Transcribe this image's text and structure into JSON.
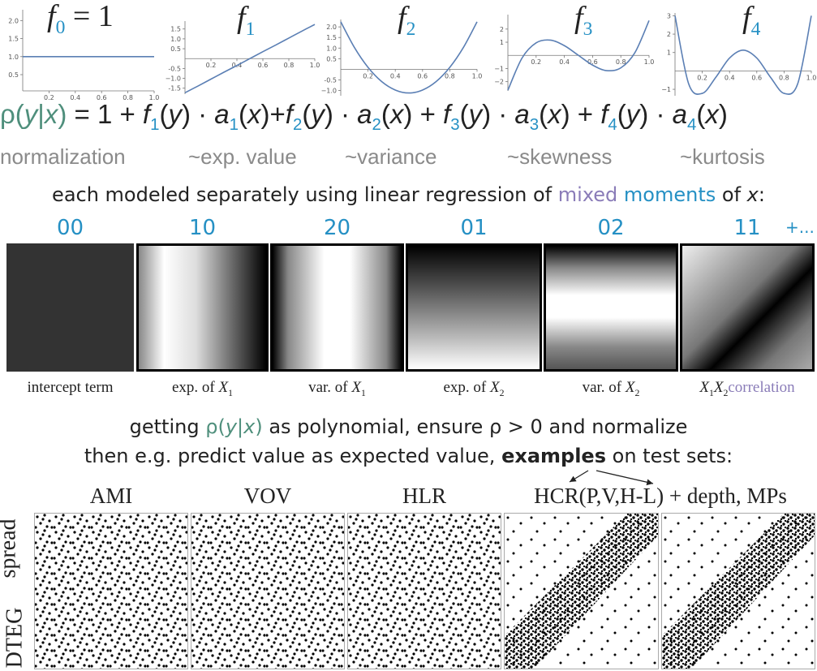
{
  "chart_data": [
    {
      "type": "line",
      "title_parts": [
        {
          "text": "f",
          "style": "italic"
        },
        {
          "text": "0",
          "style": "sub"
        },
        {
          "text": " = 1",
          "style": "plain"
        }
      ],
      "color": "#5b7fb4",
      "x": [
        0,
        0.1,
        0.2,
        0.3,
        0.4,
        0.5,
        0.6,
        0.7,
        0.8,
        0.9,
        1
      ],
      "values": [
        1,
        1,
        1,
        1,
        1,
        1,
        1,
        1,
        1,
        1,
        1
      ],
      "xlim": [
        0,
        1
      ],
      "ylim": [
        0.05,
        2.3
      ],
      "xticks": [
        0.2,
        0.4,
        0.6,
        0.8,
        {
          "value": 1,
          "label": "1.0"
        }
      ],
      "yticks": [
        0.5,
        {
          "value": 1,
          "label": "1.0"
        },
        1.5,
        {
          "value": 2,
          "label": "2.0"
        }
      ]
    },
    {
      "type": "line",
      "title_parts": [
        {
          "text": "f",
          "style": "italic"
        },
        {
          "text": "1",
          "style": "sub"
        }
      ],
      "color": "#5b7fb4",
      "x": [
        0,
        0.1,
        0.2,
        0.3,
        0.4,
        0.5,
        0.6,
        0.7,
        0.8,
        0.9,
        1
      ],
      "values": [
        -1.73,
        -1.39,
        -1.04,
        -0.69,
        -0.35,
        0,
        0.35,
        0.69,
        1.04,
        1.39,
        1.73
      ],
      "xlim": [
        0,
        1
      ],
      "ylim": [
        -1.8,
        1.9
      ],
      "xticks": [
        0.2,
        0.4,
        0.6,
        0.8,
        {
          "value": 1,
          "label": "1.0"
        }
      ],
      "yticks": [
        -1.5,
        {
          "value": -1,
          "label": "−1.0"
        },
        -0.5,
        0.5,
        {
          "value": 1,
          "label": "1.0"
        },
        1.5
      ]
    },
    {
      "type": "line",
      "title_parts": [
        {
          "text": "f",
          "style": "italic"
        },
        {
          "text": "2",
          "style": "sub"
        }
      ],
      "color": "#5b7fb4",
      "x": [
        0,
        0.1,
        0.2,
        0.3,
        0.4,
        0.5,
        0.6,
        0.7,
        0.8,
        0.9,
        1
      ],
      "values": [
        2.24,
        1.03,
        0.09,
        -0.58,
        -0.98,
        -1.12,
        -0.98,
        -0.58,
        0.09,
        1.03,
        2.24
      ],
      "xlim": [
        0,
        1
      ],
      "ylim": [
        -1.25,
        2.35
      ],
      "xticks": [
        0.2,
        0.4,
        0.6,
        0.8,
        {
          "value": 1,
          "label": "1.0"
        }
      ],
      "yticks": [
        {
          "value": -1,
          "label": "−1.0"
        },
        -0.5,
        0.5,
        {
          "value": 1,
          "label": "1.0"
        },
        1.5,
        {
          "value": 2,
          "label": "2.0"
        }
      ]
    },
    {
      "type": "line",
      "title_parts": [
        {
          "text": "f",
          "style": "italic"
        },
        {
          "text": "3",
          "style": "sub"
        }
      ],
      "color": "#5b7fb4",
      "x": [
        0,
        0.1,
        0.2,
        0.3,
        0.4,
        0.5,
        0.6,
        0.7,
        0.8,
        0.9,
        1
      ],
      "values": [
        -2.65,
        -0.21,
        0.95,
        1.16,
        0.74,
        0,
        -0.74,
        -1.16,
        -0.95,
        0.21,
        2.65
      ],
      "xlim": [
        0,
        1
      ],
      "ylim": [
        -2.7,
        3.1
      ],
      "xticks": [
        0.2,
        0.4,
        0.6,
        0.8,
        {
          "value": 1,
          "label": "1.0"
        }
      ],
      "yticks": [
        {
          "value": -2,
          "label": "−2"
        },
        {
          "value": -1,
          "label": "−1"
        },
        1,
        2
      ]
    },
    {
      "type": "line",
      "title_parts": [
        {
          "text": "f",
          "style": "italic"
        },
        {
          "text": "4",
          "style": "sub"
        }
      ],
      "color": "#5b7fb4",
      "x": [
        0,
        0.1,
        0.2,
        0.3,
        0.4,
        0.5,
        0.6,
        0.7,
        0.8,
        0.9,
        1
      ],
      "values": [
        3,
        -0.7,
        -1.22,
        -0.34,
        0.7,
        1.13,
        0.7,
        -0.34,
        -1.22,
        -0.7,
        3
      ],
      "xlim": [
        0,
        1
      ],
      "ylim": [
        -1.35,
        3.15
      ],
      "xticks": [
        0.2,
        0.4,
        0.6,
        0.8,
        {
          "value": 1,
          "label": "1.0"
        }
      ],
      "yticks": [
        {
          "value": -1,
          "label": "−1"
        },
        1,
        2,
        3
      ]
    }
  ],
  "formula": [
    {
      "text": "ρ(",
      "style": "green"
    },
    {
      "text": "y",
      "style": "green italic"
    },
    {
      "text": "|",
      "style": "green"
    },
    {
      "text": "x",
      "style": "green italic"
    },
    {
      "text": ")",
      "style": "green"
    },
    {
      "text": " = 1 + ",
      "style": "plain"
    },
    {
      "text": "f",
      "style": "italic"
    },
    {
      "text": "1",
      "style": "sub"
    },
    {
      "text": "(",
      "style": "plain"
    },
    {
      "text": "y",
      "style": "italic"
    },
    {
      "text": ") · ",
      "style": "plain"
    },
    {
      "text": "a",
      "style": "italic"
    },
    {
      "text": "1",
      "style": "sub"
    },
    {
      "text": "(",
      "style": "plain"
    },
    {
      "text": "x",
      "style": "italic"
    },
    {
      "text": ")+",
      "style": "plain"
    },
    {
      "text": "f",
      "style": "italic"
    },
    {
      "text": "2",
      "style": "sub"
    },
    {
      "text": "(",
      "style": "plain"
    },
    {
      "text": "y",
      "style": "italic"
    },
    {
      "text": ") · ",
      "style": "plain"
    },
    {
      "text": "a",
      "style": "italic"
    },
    {
      "text": "2",
      "style": "sub"
    },
    {
      "text": "(",
      "style": "plain"
    },
    {
      "text": "x",
      "style": "italic"
    },
    {
      "text": ") + ",
      "style": "plain"
    },
    {
      "text": "f",
      "style": "italic"
    },
    {
      "text": "3",
      "style": "sub"
    },
    {
      "text": "(",
      "style": "plain"
    },
    {
      "text": "y",
      "style": "italic"
    },
    {
      "text": ") · ",
      "style": "plain"
    },
    {
      "text": "a",
      "style": "italic"
    },
    {
      "text": "3",
      "style": "sub"
    },
    {
      "text": "(",
      "style": "plain"
    },
    {
      "text": "x",
      "style": "italic"
    },
    {
      "text": ") + ",
      "style": "plain"
    },
    {
      "text": "f",
      "style": "italic"
    },
    {
      "text": "4",
      "style": "sub"
    },
    {
      "text": "(",
      "style": "plain"
    },
    {
      "text": "y",
      "style": "italic"
    },
    {
      "text": ") · ",
      "style": "plain"
    },
    {
      "text": "a",
      "style": "italic"
    },
    {
      "text": "4",
      "style": "sub"
    },
    {
      "text": "(",
      "style": "plain"
    },
    {
      "text": "x",
      "style": "italic"
    },
    {
      "text": ")",
      "style": "plain"
    }
  ],
  "term_names": [
    "normalization",
    "~exp. value",
    "~variance",
    "~skewness",
    "~kurtosis"
  ],
  "sentence": [
    {
      "text": "each modeled separately using linear regression of ",
      "style": "plain"
    },
    {
      "text": "mixed",
      "style": "purple"
    },
    {
      "text": " ",
      "style": "plain"
    },
    {
      "text": "moments",
      "style": "blue"
    },
    {
      "text": " of ",
      "style": "plain"
    },
    {
      "text": "x",
      "style": "italic"
    },
    {
      "text": ":",
      "style": "plain"
    }
  ],
  "moments": [
    {
      "label": "00",
      "caption": [
        {
          "text": "intercept term",
          "style": "plain"
        }
      ]
    },
    {
      "label": "10",
      "caption": [
        {
          "text": "exp. of ",
          "style": "plain"
        },
        {
          "text": "X",
          "style": "italic"
        },
        {
          "text": "1",
          "style": "sub black"
        }
      ]
    },
    {
      "label": "20",
      "caption": [
        {
          "text": "var. of ",
          "style": "plain"
        },
        {
          "text": "X",
          "style": "italic"
        },
        {
          "text": "1",
          "style": "sub black"
        }
      ]
    },
    {
      "label": "01",
      "caption": [
        {
          "text": "exp. of ",
          "style": "plain"
        },
        {
          "text": "X",
          "style": "italic"
        },
        {
          "text": "2",
          "style": "sub black"
        }
      ]
    },
    {
      "label": "02",
      "caption": [
        {
          "text": "var. of ",
          "style": "plain"
        },
        {
          "text": "X",
          "style": "italic"
        },
        {
          "text": "2",
          "style": "sub black"
        }
      ]
    },
    {
      "label": "11",
      "caption": [
        {
          "text": "X",
          "style": "italic"
        },
        {
          "text": "1",
          "style": "sub black"
        },
        {
          "text": "X",
          "style": "italic"
        },
        {
          "text": "2",
          "style": "sub black"
        },
        {
          "text": "correlation",
          "style": "purple"
        }
      ]
    }
  ],
  "more_moments": "+...",
  "line1": [
    {
      "text": "getting ",
      "style": "plain"
    },
    {
      "text": "ρ(",
      "style": "green"
    },
    {
      "text": "y",
      "style": "green italic"
    },
    {
      "text": "|",
      "style": "green"
    },
    {
      "text": "x",
      "style": "green italic"
    },
    {
      "text": ")",
      "style": "green"
    },
    {
      "text": " as polynomial, ensure ρ > 0 and normalize",
      "style": "plain"
    }
  ],
  "line2": [
    {
      "text": "then e.g. predict value as expected value, ",
      "style": "plain"
    },
    {
      "text": "examples",
      "style": "bold"
    },
    {
      "text": " on test sets:",
      "style": "plain"
    }
  ],
  "examples": {
    "titles": [
      "AMI",
      "VOV",
      "HLR",
      "HCR(P,V,H-L) + depth, MPs"
    ],
    "y_label": "spread",
    "x_label": "DTEG"
  }
}
